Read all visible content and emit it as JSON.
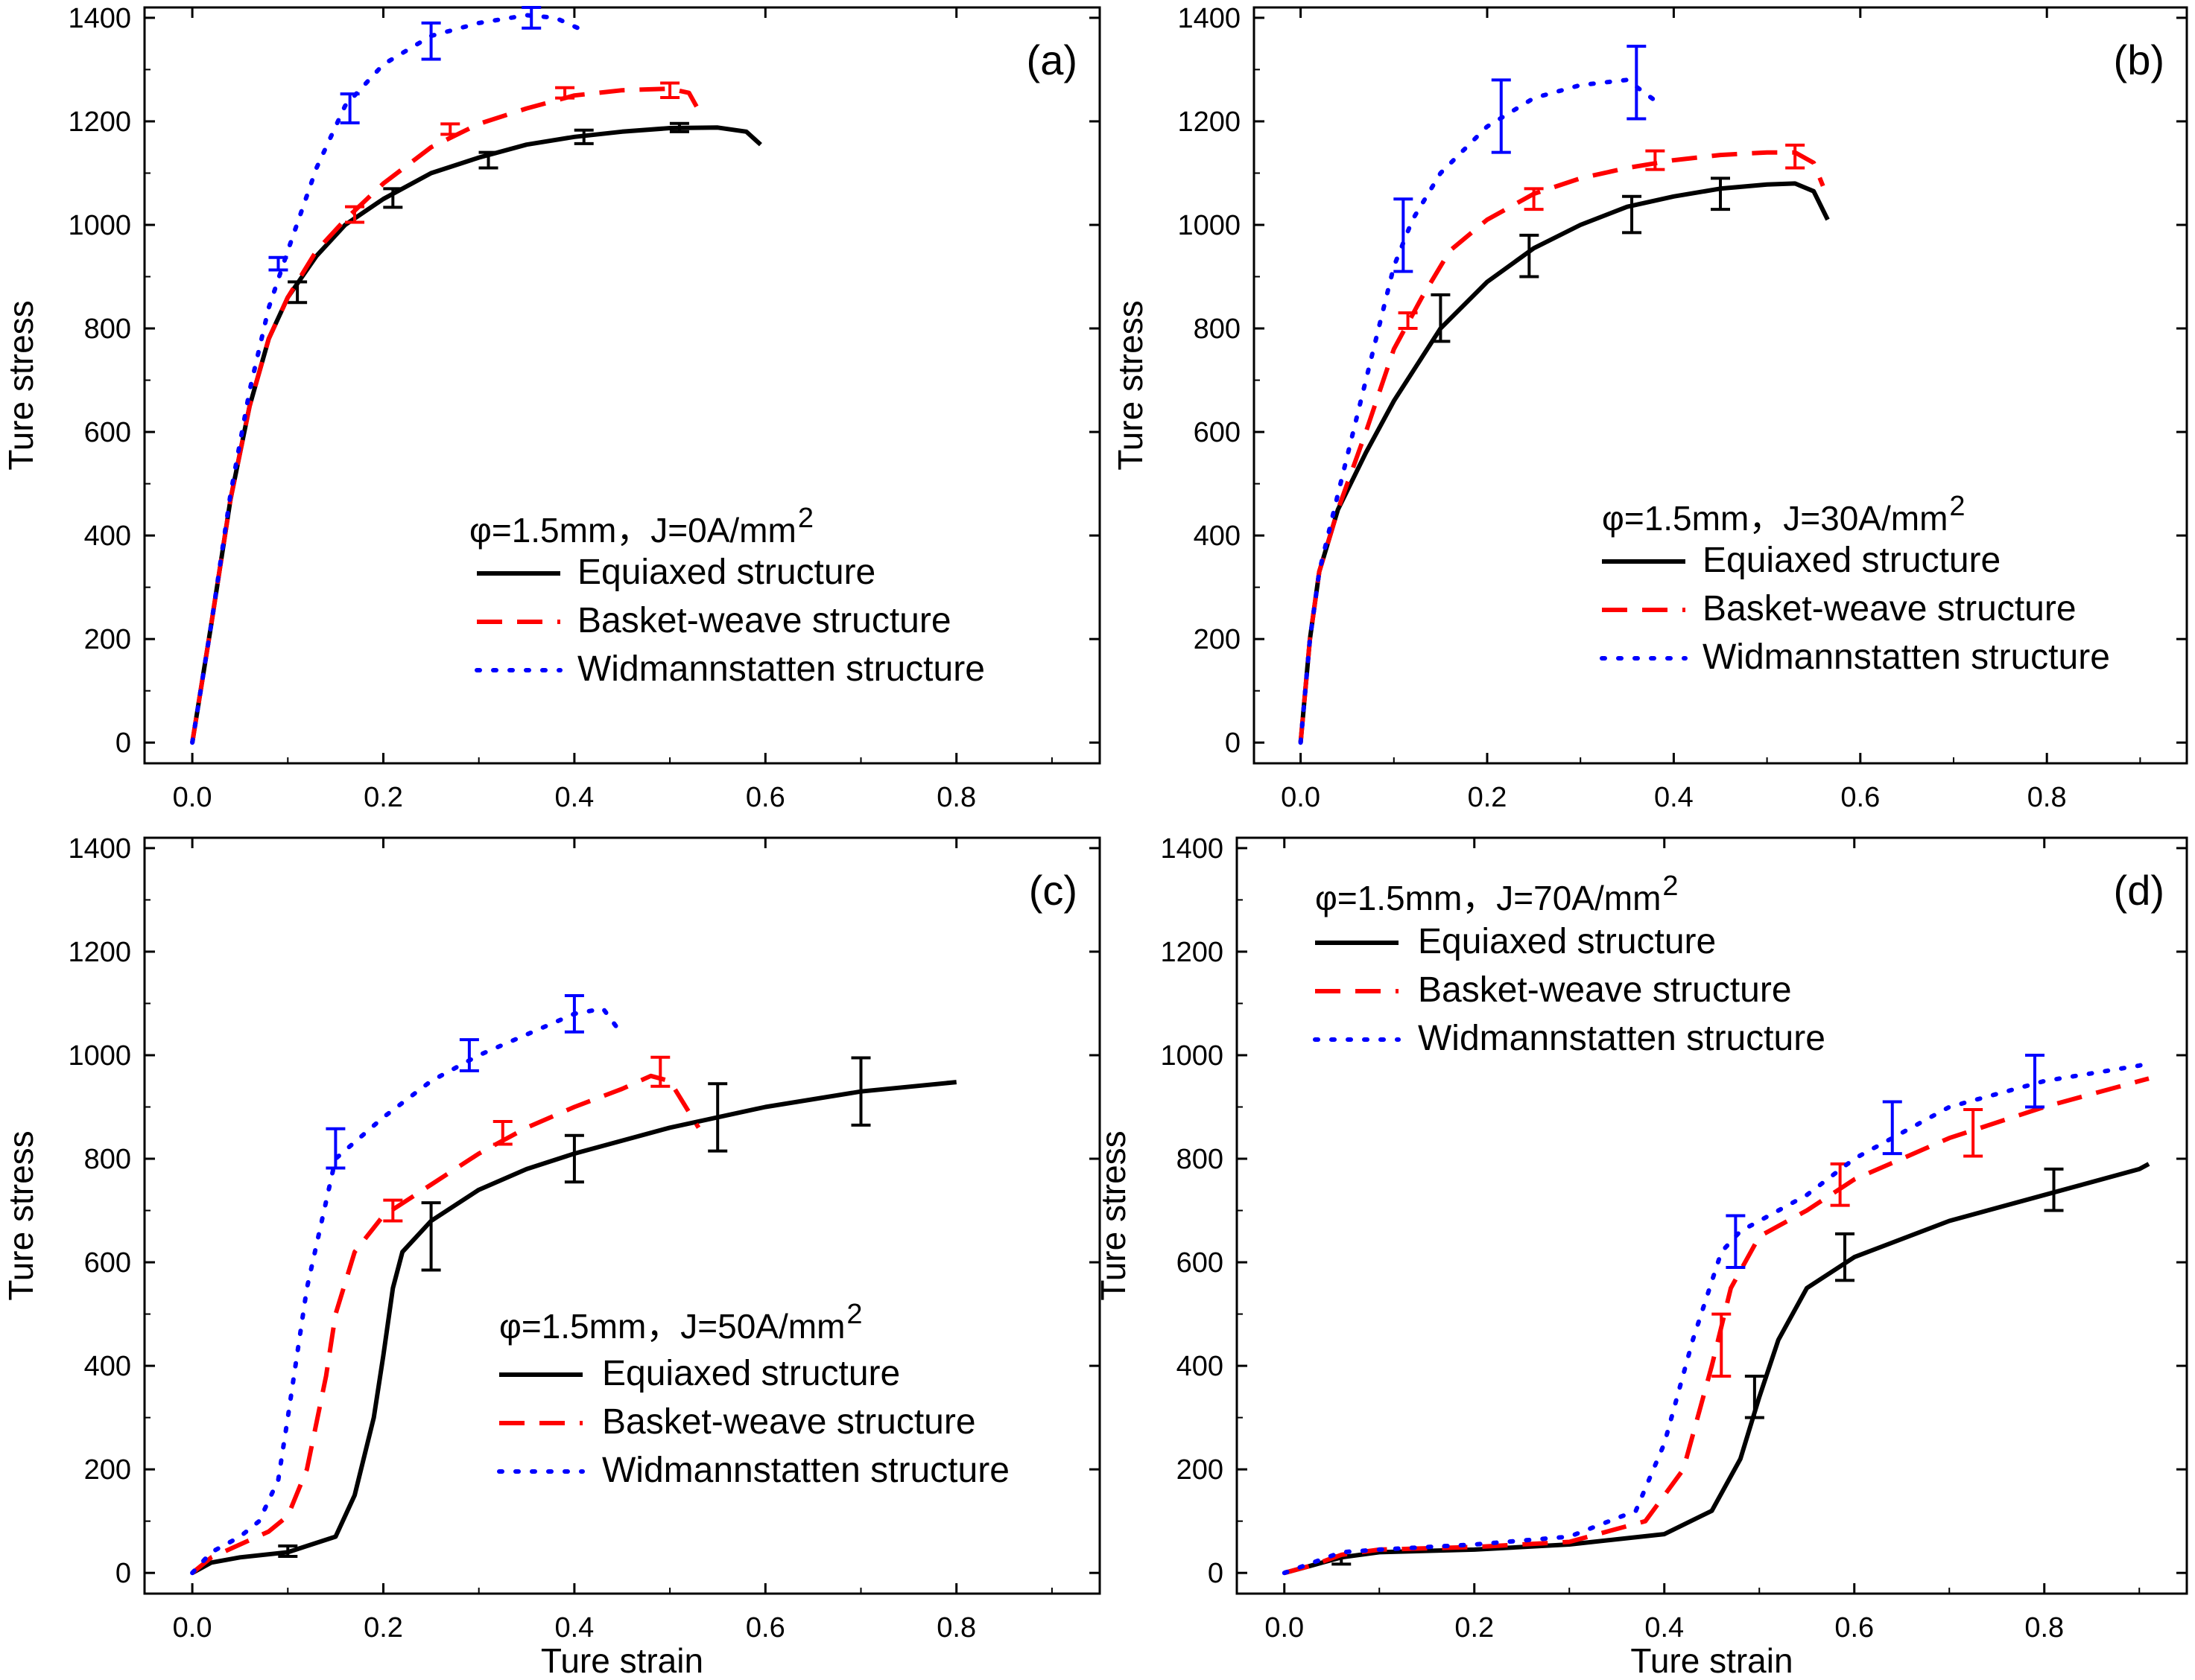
{
  "figure": {
    "title": ""
  },
  "series_styles": [
    {
      "key": "equiaxed",
      "name": "Equiaxed structure",
      "color": "#000000",
      "dash": "",
      "width": 6
    },
    {
      "key": "basket",
      "name": "Basket-weave structure",
      "color": "#ff0000",
      "dash": "34,20",
      "width": 6
    },
    {
      "key": "widman",
      "name": "Widmannstatten structure",
      "color": "#0000ff",
      "dash": "4,18",
      "width": 6
    }
  ],
  "chart_data": [
    {
      "type": "line",
      "panel_label": "(a)",
      "annotation": "φ=1.5mm，J=0A/mm",
      "annotation_sup": "2",
      "xlabel": "",
      "ylabel": "Ture stress",
      "xlim": [
        -0.05,
        0.95
      ],
      "ylim": [
        -40,
        1420
      ],
      "xticks": [
        "0.0",
        "0.2",
        "0.4",
        "0.6",
        "0.8"
      ],
      "yticks": [
        "0",
        "200",
        "400",
        "600",
        "800",
        "1000",
        "1200",
        "1400"
      ],
      "series": [
        {
          "name": "Equiaxed structure",
          "x": [
            0,
            0.02,
            0.04,
            0.06,
            0.08,
            0.1,
            0.13,
            0.16,
            0.2,
            0.25,
            0.3,
            0.35,
            0.4,
            0.45,
            0.5,
            0.55,
            0.58,
            0.595
          ],
          "y": [
            0,
            230,
            470,
            650,
            780,
            860,
            940,
            1000,
            1050,
            1100,
            1130,
            1155,
            1170,
            1180,
            1187,
            1188,
            1180,
            1155
          ],
          "errorbars": [
            [
              0.11,
              870,
              20
            ],
            [
              0.21,
              1052,
              18
            ],
            [
              0.31,
              1125,
              15
            ],
            [
              0.41,
              1170,
              13
            ],
            [
              0.51,
              1188,
              8
            ]
          ]
        },
        {
          "name": "Basket-weave structure",
          "x": [
            0,
            0.02,
            0.04,
            0.06,
            0.08,
            0.1,
            0.13,
            0.16,
            0.2,
            0.25,
            0.3,
            0.35,
            0.4,
            0.45,
            0.5,
            0.52,
            0.535
          ],
          "y": [
            0,
            230,
            470,
            650,
            780,
            860,
            950,
            1010,
            1080,
            1150,
            1195,
            1225,
            1250,
            1260,
            1263,
            1255,
            1205
          ],
          "errorbars": [
            [
              0.17,
              1020,
              15
            ],
            [
              0.27,
              1185,
              10
            ],
            [
              0.39,
              1255,
              10
            ],
            [
              0.5,
              1260,
              14
            ]
          ]
        },
        {
          "name": "Widmannstatten structure",
          "x": [
            0,
            0.02,
            0.04,
            0.06,
            0.08,
            0.1,
            0.13,
            0.16,
            0.2,
            0.25,
            0.3,
            0.35,
            0.38,
            0.41
          ],
          "y": [
            0,
            230,
            480,
            680,
            840,
            950,
            1110,
            1230,
            1310,
            1365,
            1390,
            1405,
            1400,
            1375
          ],
          "errorbars": [
            [
              0.09,
              925,
              12
            ],
            [
              0.165,
              1225,
              28
            ],
            [
              0.25,
              1355,
              35
            ],
            [
              0.355,
              1400,
              20
            ]
          ]
        }
      ]
    },
    {
      "type": "line",
      "panel_label": "(b)",
      "annotation": "φ=1.5mm，J=30A/mm",
      "annotation_sup": "2",
      "xlabel": "",
      "ylabel": "Ture stress",
      "xlim": [
        -0.05,
        0.95
      ],
      "ylim": [
        -40,
        1420
      ],
      "xticks": [
        "0.0",
        "0.2",
        "0.4",
        "0.6",
        "0.8"
      ],
      "yticks": [
        "0",
        "200",
        "400",
        "600",
        "800",
        "1000",
        "1200",
        "1400"
      ],
      "series": [
        {
          "name": "Equiaxed structure",
          "x": [
            0,
            0.01,
            0.02,
            0.04,
            0.07,
            0.1,
            0.15,
            0.2,
            0.25,
            0.3,
            0.35,
            0.4,
            0.45,
            0.5,
            0.53,
            0.55,
            0.565
          ],
          "y": [
            0,
            200,
            330,
            450,
            560,
            660,
            800,
            890,
            955,
            1000,
            1035,
            1055,
            1070,
            1078,
            1080,
            1065,
            1010
          ],
          "errorbars": [
            [
              0.15,
              820,
              45
            ],
            [
              0.245,
              940,
              40
            ],
            [
              0.355,
              1020,
              35
            ],
            [
              0.45,
              1060,
              30
            ]
          ]
        },
        {
          "name": "Basket-weave structure",
          "x": [
            0,
            0.01,
            0.02,
            0.04,
            0.07,
            0.1,
            0.13,
            0.16,
            0.2,
            0.25,
            0.3,
            0.35,
            0.4,
            0.45,
            0.5,
            0.53,
            0.55,
            0.56
          ],
          "y": [
            0,
            200,
            330,
            450,
            600,
            760,
            860,
            950,
            1010,
            1060,
            1090,
            1110,
            1125,
            1135,
            1140,
            1140,
            1120,
            1075
          ],
          "errorbars": [
            [
              0.115,
              815,
              15
            ],
            [
              0.25,
              1050,
              20
            ],
            [
              0.38,
              1125,
              18
            ],
            [
              0.53,
              1132,
              22
            ]
          ]
        },
        {
          "name": "Widmannstatten structure",
          "x": [
            0,
            0.01,
            0.02,
            0.04,
            0.07,
            0.1,
            0.12,
            0.15,
            0.2,
            0.25,
            0.3,
            0.35,
            0.38
          ],
          "y": [
            0,
            200,
            330,
            480,
            700,
            920,
            1010,
            1100,
            1190,
            1245,
            1270,
            1280,
            1240
          ],
          "errorbars": [
            [
              0.11,
              980,
              70
            ],
            [
              0.215,
              1210,
              70
            ],
            [
              0.36,
              1275,
              70
            ]
          ]
        }
      ]
    },
    {
      "type": "line",
      "panel_label": "(c)",
      "annotation": "φ=1.5mm，J=50A/mm",
      "annotation_sup": "2",
      "xlabel": "Ture strain",
      "ylabel": "Ture stress",
      "xlim": [
        -0.05,
        0.95
      ],
      "ylim": [
        -40,
        1420
      ],
      "xticks": [
        "0.0",
        "0.2",
        "0.4",
        "0.6",
        "0.8"
      ],
      "yticks": [
        "0",
        "200",
        "400",
        "600",
        "800",
        "1000",
        "1200",
        "1400"
      ],
      "series": [
        {
          "name": "Equiaxed structure",
          "x": [
            0,
            0.02,
            0.05,
            0.1,
            0.15,
            0.17,
            0.19,
            0.2,
            0.21,
            0.22,
            0.25,
            0.3,
            0.35,
            0.4,
            0.5,
            0.6,
            0.7,
            0.8
          ],
          "y": [
            0,
            20,
            30,
            40,
            70,
            150,
            300,
            420,
            550,
            620,
            680,
            740,
            780,
            810,
            860,
            900,
            930,
            948
          ],
          "errorbars": [
            [
              0.1,
              42,
              10
            ],
            [
              0.25,
              650,
              65
            ],
            [
              0.4,
              800,
              45
            ],
            [
              0.55,
              880,
              65
            ],
            [
              0.7,
              930,
              65
            ]
          ]
        },
        {
          "name": "Basket-weave structure",
          "x": [
            0,
            0.02,
            0.05,
            0.08,
            0.1,
            0.12,
            0.14,
            0.15,
            0.17,
            0.2,
            0.25,
            0.3,
            0.35,
            0.4,
            0.45,
            0.48,
            0.5,
            0.53
          ],
          "y": [
            0,
            30,
            55,
            80,
            110,
            200,
            380,
            500,
            620,
            690,
            750,
            810,
            860,
            900,
            935,
            960,
            950,
            860
          ],
          "errorbars": [
            [
              0.21,
              700,
              20
            ],
            [
              0.325,
              850,
              22
            ],
            [
              0.49,
              968,
              28
            ]
          ]
        },
        {
          "name": "Widmannstatten structure",
          "x": [
            0,
            0.02,
            0.05,
            0.07,
            0.09,
            0.1,
            0.12,
            0.15,
            0.2,
            0.25,
            0.3,
            0.35,
            0.4,
            0.43,
            0.45
          ],
          "y": [
            0,
            40,
            70,
            100,
            180,
            300,
            550,
            800,
            880,
            950,
            1000,
            1040,
            1080,
            1090,
            1040
          ],
          "errorbars": [
            [
              0.15,
              820,
              38
            ],
            [
              0.29,
              1000,
              30
            ],
            [
              0.4,
              1080,
              35
            ]
          ]
        }
      ]
    },
    {
      "type": "line",
      "panel_label": "(d)",
      "annotation": "φ=1.5mm，J=70A/mm",
      "annotation_sup": "2",
      "xlabel": "Ture strain",
      "ylabel": "Ture stress",
      "xlim": [
        -0.05,
        0.95
      ],
      "ylim": [
        -40,
        1420
      ],
      "xticks": [
        "0.0",
        "0.2",
        "0.4",
        "0.6",
        "0.8"
      ],
      "yticks": [
        "0",
        "200",
        "400",
        "600",
        "800",
        "1000",
        "1200",
        "1400"
      ],
      "series": [
        {
          "name": "Equiaxed structure",
          "x": [
            0,
            0.03,
            0.06,
            0.1,
            0.2,
            0.3,
            0.4,
            0.45,
            0.48,
            0.5,
            0.52,
            0.55,
            0.6,
            0.7,
            0.8,
            0.9,
            0.91
          ],
          "y": [
            0,
            15,
            30,
            40,
            45,
            55,
            75,
            120,
            220,
            340,
            450,
            550,
            610,
            680,
            730,
            780,
            790
          ],
          "errorbars": [
            [
              0.06,
              25,
              8
            ],
            [
              0.495,
              340,
              40
            ],
            [
              0.59,
              610,
              45
            ],
            [
              0.81,
              740,
              40
            ]
          ]
        },
        {
          "name": "Basket-weave structure",
          "x": [
            0,
            0.03,
            0.06,
            0.1,
            0.2,
            0.3,
            0.38,
            0.42,
            0.45,
            0.47,
            0.5,
            0.55,
            0.6,
            0.7,
            0.8,
            0.9,
            0.91
          ],
          "y": [
            0,
            15,
            35,
            45,
            50,
            60,
            100,
            200,
            400,
            550,
            650,
            700,
            760,
            840,
            900,
            950,
            955
          ],
          "errorbars": [
            [
              0.46,
              440,
              60
            ],
            [
              0.585,
              750,
              40
            ],
            [
              0.725,
              850,
              45
            ]
          ]
        },
        {
          "name": "Widmannstatten structure",
          "x": [
            0,
            0.03,
            0.06,
            0.1,
            0.2,
            0.3,
            0.37,
            0.4,
            0.43,
            0.46,
            0.48,
            0.5,
            0.55,
            0.6,
            0.7,
            0.8,
            0.9,
            0.91
          ],
          "y": [
            0,
            20,
            40,
            45,
            55,
            70,
            120,
            250,
            450,
            620,
            660,
            680,
            730,
            800,
            900,
            950,
            980,
            985
          ],
          "errorbars": [
            [
              0.475,
              640,
              50
            ],
            [
              0.64,
              860,
              50
            ],
            [
              0.79,
              950,
              50
            ]
          ]
        }
      ]
    }
  ]
}
